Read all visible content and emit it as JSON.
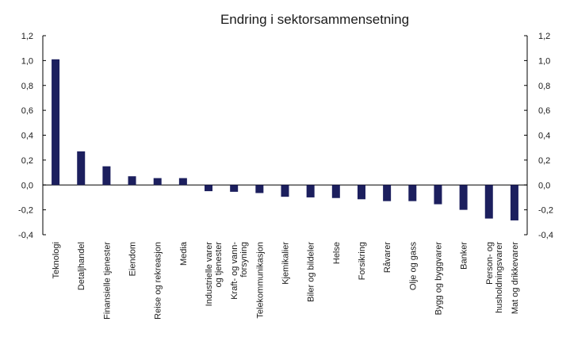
{
  "chart_data": {
    "type": "bar",
    "title": "Endring i sektorsammensetning",
    "xlabel": "",
    "ylabel": "",
    "ylim": [
      -0.4,
      1.2
    ],
    "yticks": [
      "1,2",
      "1,0",
      "0,8",
      "0,6",
      "0,4",
      "0,2",
      "0,0",
      "-0,2",
      "-0,4"
    ],
    "ytick_values": [
      1.2,
      1.0,
      0.8,
      0.6,
      0.4,
      0.2,
      0.0,
      -0.2,
      -0.4
    ],
    "grid": false,
    "bar_color": "#1c1f5e",
    "categories": [
      [
        "Teknologi"
      ],
      [
        "Detaljhandel"
      ],
      [
        "Finansielle tjenester"
      ],
      [
        "Eiendom"
      ],
      [
        "Reise og rekreasjon"
      ],
      [
        "Media"
      ],
      [
        "Industrielle varer",
        "og tjenester"
      ],
      [
        "Kraft- og vann-",
        "forsyning"
      ],
      [
        "Telekommunikasjon"
      ],
      [
        "Kjemikalier"
      ],
      [
        "Biler og bildeler"
      ],
      [
        "Helse"
      ],
      [
        "Forsikring"
      ],
      [
        "Råvarer"
      ],
      [
        "Olje og gass"
      ],
      [
        "Bygg og byggvarer"
      ],
      [
        "Banker"
      ],
      [
        "Person- og",
        "husholdningsvarer"
      ],
      [
        "Mat og drikkevarer"
      ]
    ],
    "values": [
      1.01,
      0.27,
      0.15,
      0.07,
      0.055,
      0.055,
      -0.05,
      -0.055,
      -0.065,
      -0.095,
      -0.1,
      -0.105,
      -0.115,
      -0.13,
      -0.13,
      -0.155,
      -0.2,
      -0.27,
      -0.285
    ]
  }
}
